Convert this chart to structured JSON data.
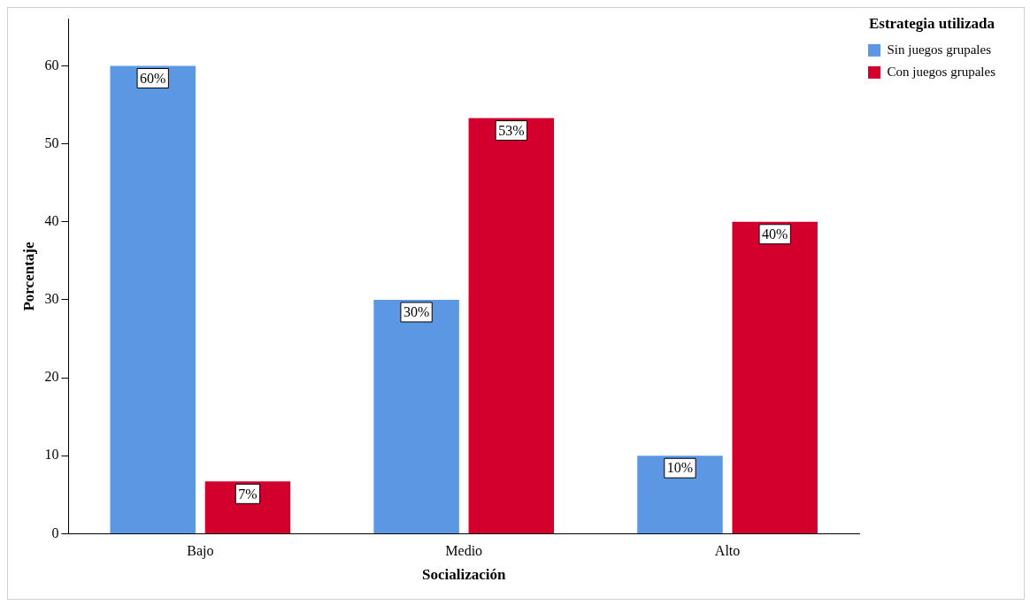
{
  "chart_data": {
    "type": "bar",
    "xlabel": "Socialización",
    "ylabel": "Porcentaje",
    "legend_title": "Estrategia utilizada",
    "categories": [
      "Bajo",
      "Medio",
      "Alto"
    ],
    "series": [
      {
        "name": "Sin juegos grupales",
        "color": "#5b97e3",
        "values": [
          60,
          30,
          10
        ],
        "value_labels": [
          "60%",
          "30%",
          "10%"
        ]
      },
      {
        "name": "Con juegos grupales",
        "color": "#d3002e",
        "values": [
          6.7,
          53.3,
          40
        ],
        "value_labels": [
          "7%",
          "53%",
          "40%"
        ]
      }
    ],
    "ylim": [
      0,
      66
    ],
    "yticks": [
      0,
      10,
      20,
      30,
      40,
      50,
      60
    ],
    "grid": false,
    "legend": "top right"
  }
}
